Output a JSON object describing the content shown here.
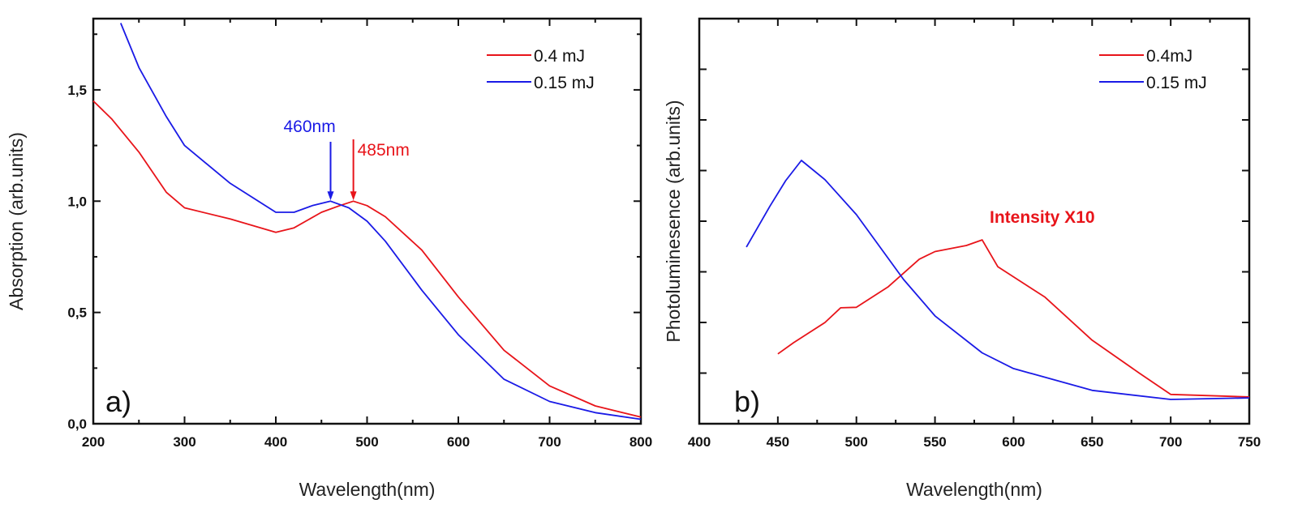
{
  "chart_data": [
    {
      "type": "line",
      "panel_label": "a)",
      "xlabel": "Wavelength(nm)",
      "ylabel": "Absorption (arb.units)",
      "xlim": [
        200,
        800
      ],
      "ylim": [
        0,
        1.82
      ],
      "xticks": [
        "200",
        "300",
        "400",
        "500",
        "600",
        "700",
        "800"
      ],
      "yticks": [
        "0,0",
        "0,5",
        "1,0",
        "1,5"
      ],
      "legend_position": "top-right",
      "series": [
        {
          "name": "0.4 mJ",
          "color": "#e8141a",
          "x": [
            200,
            220,
            250,
            280,
            300,
            350,
            400,
            420,
            450,
            470,
            485,
            500,
            520,
            560,
            600,
            650,
            700,
            750,
            800
          ],
          "y": [
            1.45,
            1.37,
            1.22,
            1.04,
            0.97,
            0.92,
            0.86,
            0.88,
            0.95,
            0.98,
            1.0,
            0.98,
            0.93,
            0.78,
            0.57,
            0.33,
            0.17,
            0.08,
            0.03
          ]
        },
        {
          "name": "0.15 mJ",
          "color": "#1a1ae6",
          "x": [
            230,
            250,
            280,
            300,
            350,
            400,
            420,
            440,
            460,
            480,
            500,
            520,
            560,
            600,
            650,
            700,
            750,
            800
          ],
          "y": [
            1.8,
            1.6,
            1.38,
            1.25,
            1.08,
            0.95,
            0.95,
            0.98,
            1.0,
            0.97,
            0.91,
            0.82,
            0.6,
            0.4,
            0.2,
            0.1,
            0.05,
            0.02
          ]
        }
      ],
      "annotations": [
        {
          "text": "460nm",
          "x": 460,
          "y": 1.0,
          "color": "#1a1ae6"
        },
        {
          "text": "485nm",
          "x": 485,
          "y": 1.0,
          "color": "#e8141a"
        }
      ]
    },
    {
      "type": "line",
      "panel_label": "b)",
      "xlabel": "Wavelength(nm)",
      "ylabel": "Photoluminesence (arb.units)",
      "xlim": [
        400,
        750
      ],
      "ylim": [
        0,
        8
      ],
      "xticks": [
        "400",
        "450",
        "500",
        "550",
        "600",
        "650",
        "700",
        "750"
      ],
      "yticks": [],
      "legend_position": "top-right",
      "series": [
        {
          "name": "0.4mJ",
          "color": "#e8141a",
          "x": [
            450,
            460,
            470,
            480,
            490,
            500,
            520,
            540,
            550,
            570,
            580,
            590,
            620,
            650,
            680,
            700,
            750
          ],
          "y": [
            1.38,
            1.6,
            1.8,
            2.0,
            2.29,
            2.3,
            2.7,
            3.25,
            3.4,
            3.52,
            3.63,
            3.1,
            2.5,
            1.65,
            1.0,
            0.58,
            0.53
          ]
        },
        {
          "name": "0.15 mJ",
          "color": "#1a1ae6",
          "x": [
            430,
            445,
            455,
            465,
            480,
            500,
            530,
            550,
            580,
            600,
            650,
            700,
            750
          ],
          "y": [
            3.49,
            4.3,
            4.8,
            5.2,
            4.82,
            4.13,
            2.85,
            2.13,
            1.4,
            1.09,
            0.66,
            0.48,
            0.51
          ]
        }
      ],
      "annotations": [
        {
          "text": "Intensity X10",
          "x": 590,
          "y": 4.0,
          "color": "#e8141a"
        }
      ]
    }
  ]
}
